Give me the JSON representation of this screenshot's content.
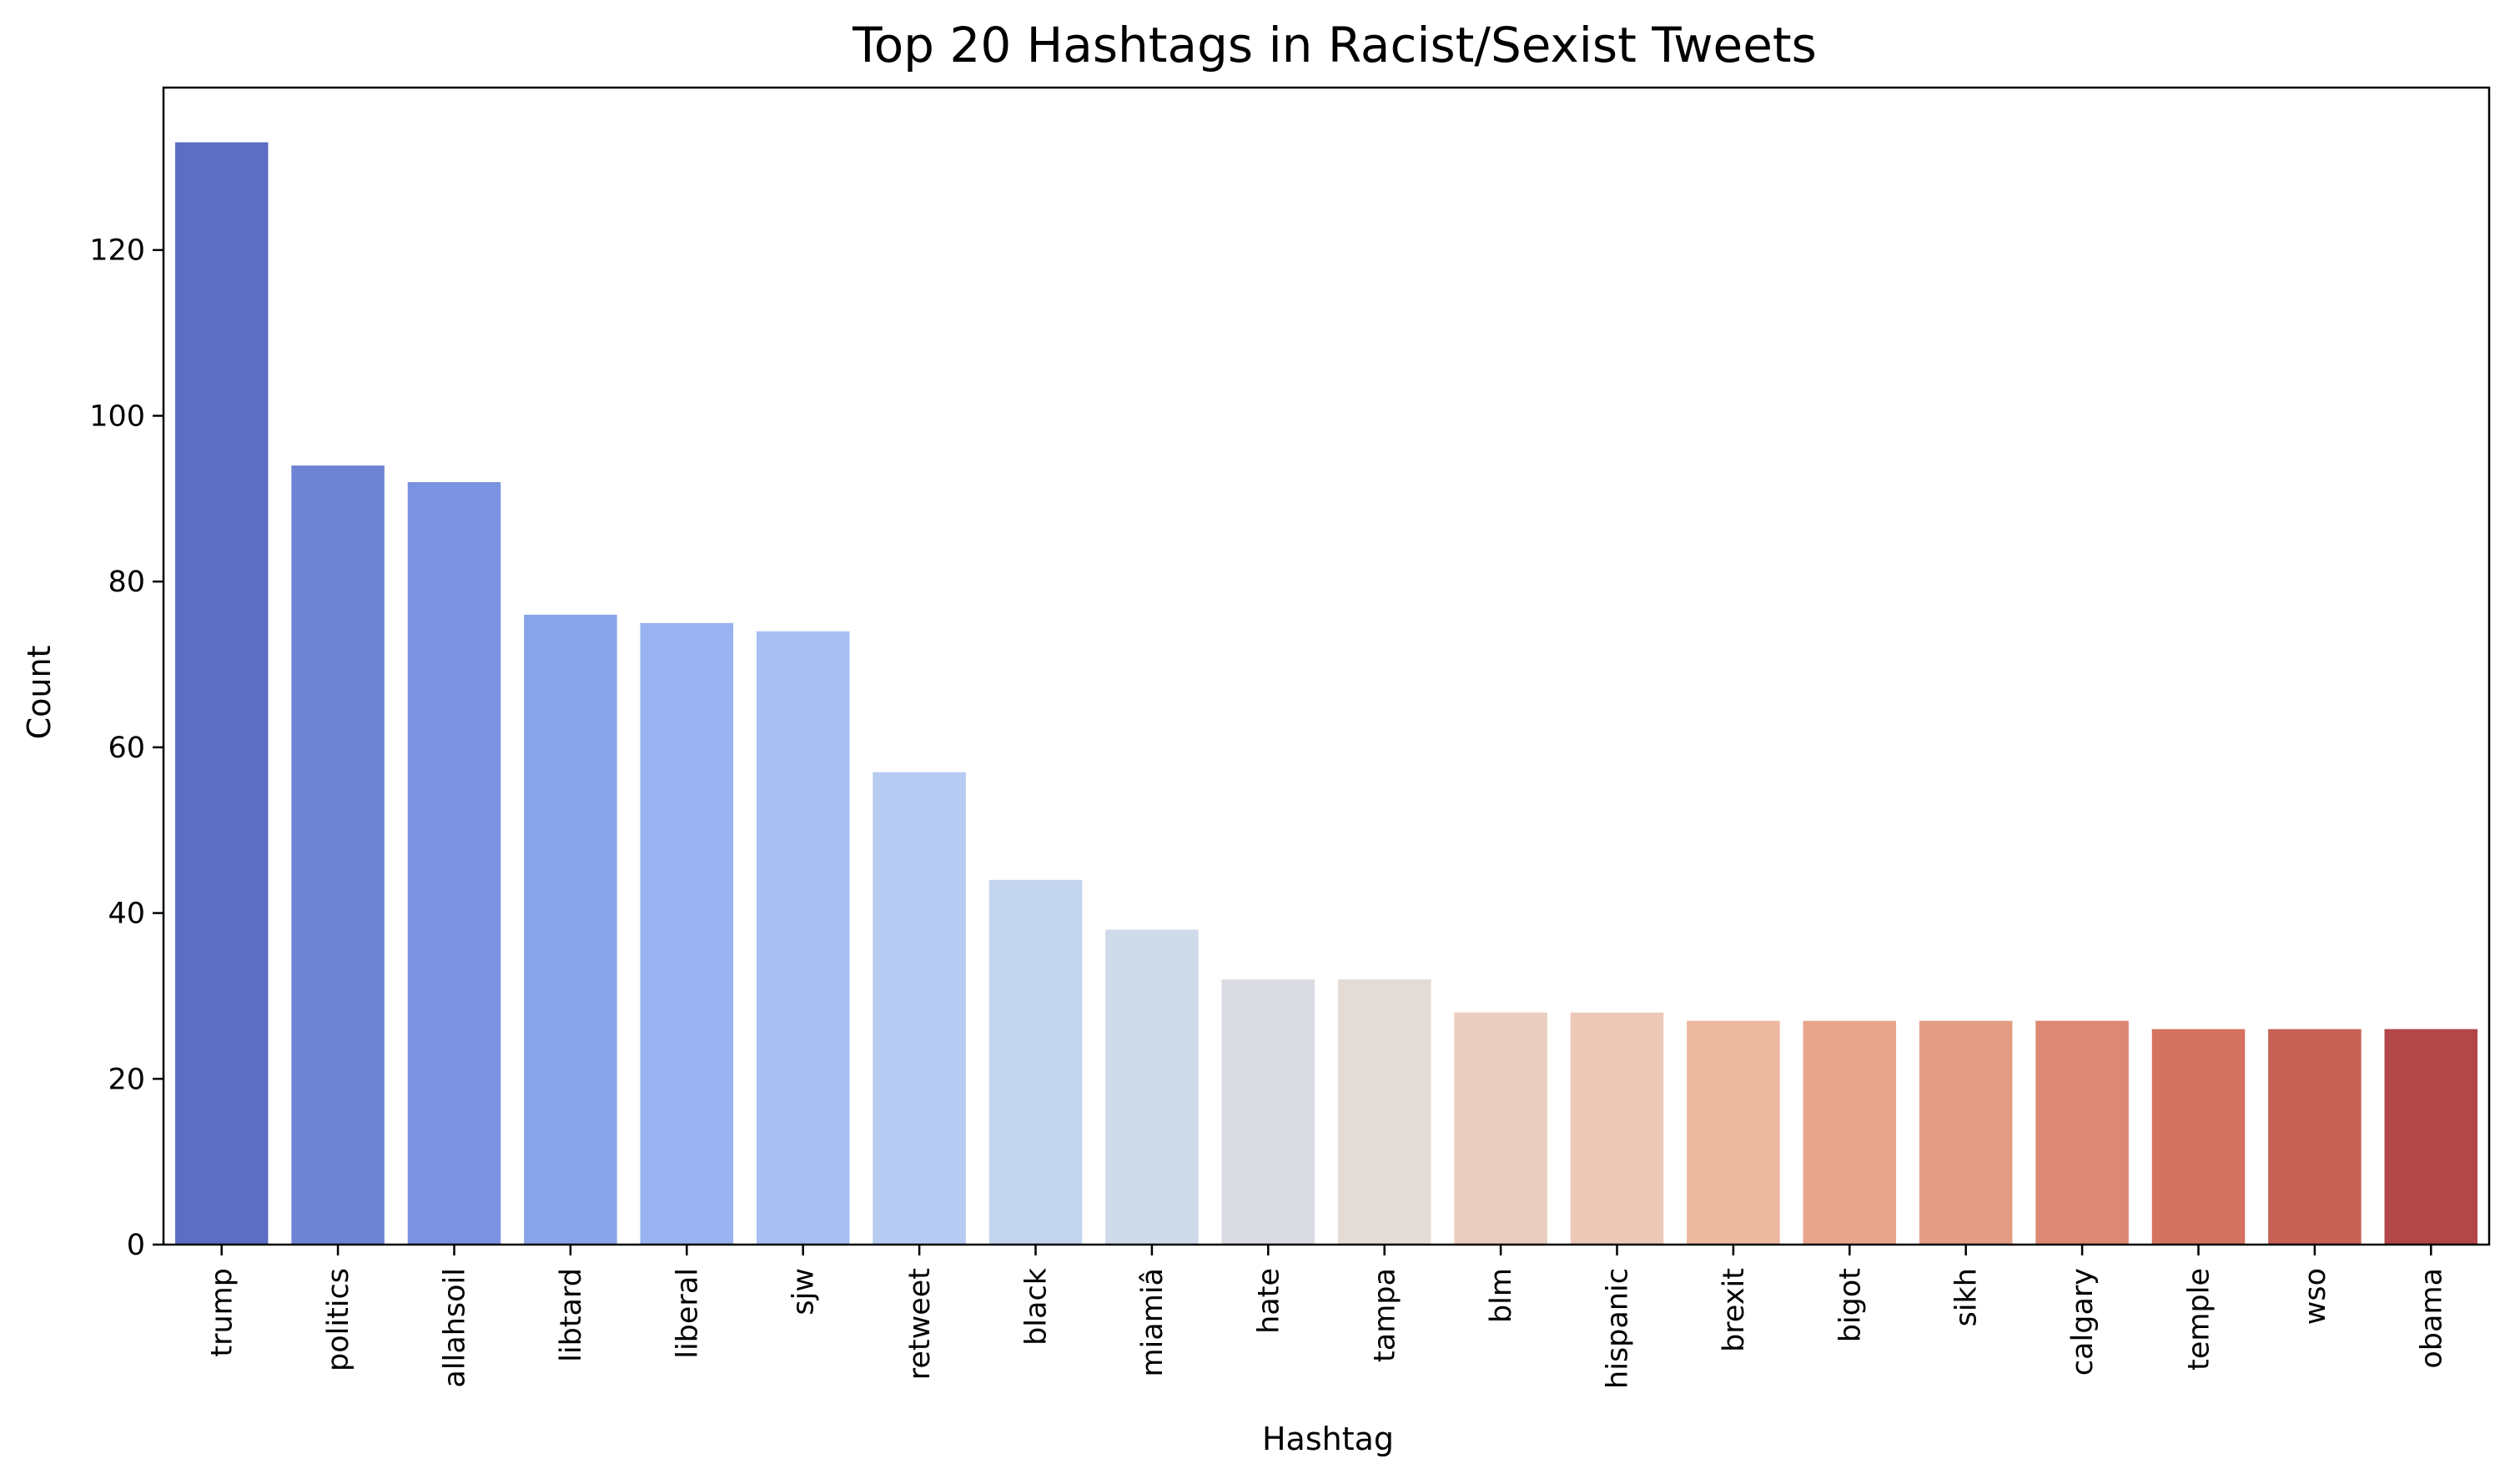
{
  "chart_data": {
    "type": "bar",
    "title": "Top 20 Hashtags in Racist/Sexist Tweets",
    "xlabel": "Hashtag",
    "ylabel": "Count",
    "ylim": [
      0,
      139.6
    ],
    "yticks": [
      0,
      20,
      40,
      60,
      80,
      100,
      120
    ],
    "grid": false,
    "categories": [
      "trump",
      "politics",
      "allahsoil",
      "libtard",
      "liberal",
      "sjw",
      "retweet",
      "black",
      "miamiâ",
      "hate",
      "tampa",
      "blm",
      "hispanic",
      "brexit",
      "bigot",
      "sikh",
      "calgary",
      "temple",
      "wso",
      "obama"
    ],
    "values": [
      133,
      94,
      92,
      76,
      75,
      74,
      57,
      44,
      38,
      32,
      32,
      28,
      28,
      27,
      27,
      27,
      27,
      26,
      26,
      26
    ],
    "colors": [
      "#5b6ec4",
      "#6d84d5",
      "#7a92df",
      "#88a3e7",
      "#98b3f0",
      "#a7bff3",
      "#b6cbf2",
      "#c3d4ef",
      "#cfdaeb",
      "#dadbe2",
      "#e3dbd6",
      "#ebcdc0",
      "#ecc8b6",
      "#ecb8a0",
      "#e9a68c",
      "#e49d85",
      "#dd8874",
      "#d4735f",
      "#c66156",
      "#b34648"
    ]
  }
}
